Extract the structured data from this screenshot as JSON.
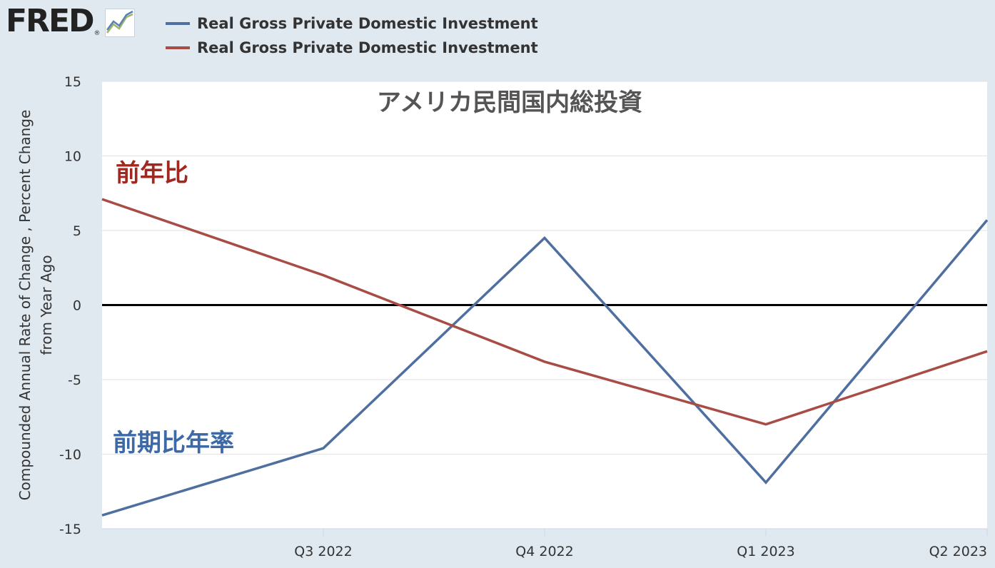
{
  "logo": {
    "text": "FRED",
    "reg": "®"
  },
  "legend": [
    {
      "label": "Real Gross Private Domestic Investment",
      "color": "#4e6f9f"
    },
    {
      "label": "Real Gross Private Domestic Investment",
      "color": "#a84c46"
    }
  ],
  "chart_data": {
    "type": "line",
    "title": "アメリカ民間国内総投資",
    "ylabel_line1": "Compounded Annual Rate of Change , Percent Change",
    "ylabel_line2": "from Year Ago",
    "xlabel": "",
    "ylim": [
      -15,
      15
    ],
    "yticks": [
      15,
      10,
      5,
      0,
      -5,
      -10,
      -15
    ],
    "x_ticks": [
      {
        "x": 1,
        "label": "Q3 2022"
      },
      {
        "x": 2,
        "label": "Q4 2022"
      },
      {
        "x": 3,
        "label": "Q1 2023"
      },
      {
        "x": 4,
        "label": "Q2 2023"
      }
    ],
    "xlim": [
      0,
      4
    ],
    "grid": true,
    "zero_line": true,
    "series": [
      {
        "x": [
          0,
          1,
          2,
          3,
          4
        ],
        "values": [
          -14.1,
          -9.6,
          4.5,
          -11.9,
          5.7
        ],
        "color": "#4e6f9f"
      },
      {
        "x": [
          0,
          1,
          2,
          3,
          4
        ],
        "values": [
          7.1,
          2.0,
          -3.8,
          -8.0,
          -3.1
        ],
        "color": "#a84c46"
      }
    ],
    "annotations": [
      {
        "text": "前年比",
        "color": "#a02820"
      },
      {
        "text": "前期比年率",
        "color": "#3d6aa6"
      }
    ]
  }
}
